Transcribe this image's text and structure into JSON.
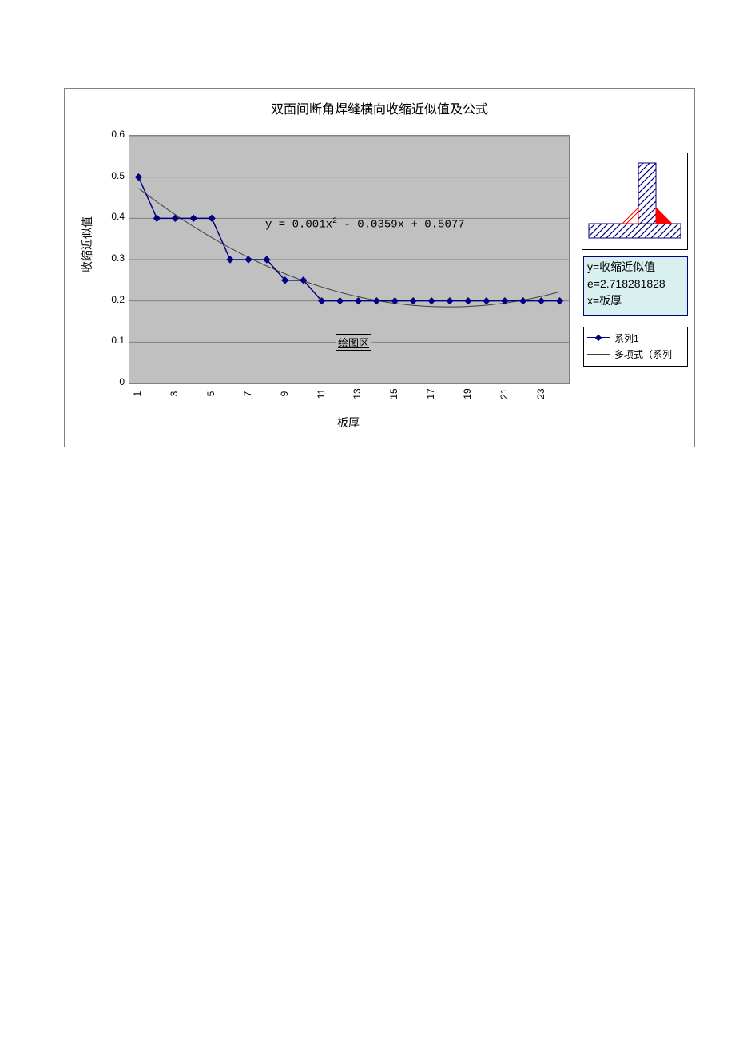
{
  "chart": {
    "type": "line",
    "title": "双面间断角焊缝横向收缩近似值及公式",
    "x_label": "板厚",
    "y_label": "收缩近似值",
    "drawing_area_label": "绘图区",
    "equation": "y = 0.001x² - 0.0359x + 0.5077",
    "title_fontsize": 16,
    "label_fontsize": 14,
    "tick_fontsize": 12,
    "plot_bg": "#c0c0c0",
    "outer_bg": "#ffffff",
    "grid_color": "#808080",
    "border_color": "#808080",
    "series1": {
      "name": "系列1",
      "color": "#000080",
      "marker": "diamond",
      "marker_size": 6,
      "line_width": 1.5,
      "x": [
        1,
        2,
        3,
        4,
        5,
        6,
        7,
        8,
        9,
        10,
        11,
        12,
        13,
        14,
        15,
        16,
        17,
        18,
        19,
        20,
        21,
        22,
        23,
        24
      ],
      "y": [
        0.5,
        0.4,
        0.4,
        0.4,
        0.4,
        0.3,
        0.3,
        0.3,
        0.25,
        0.25,
        0.2,
        0.2,
        0.2,
        0.2,
        0.2,
        0.2,
        0.2,
        0.2,
        0.2,
        0.2,
        0.2,
        0.2,
        0.2,
        0.2
      ]
    },
    "trendline": {
      "name": "多项式（系列",
      "color": "#404040",
      "line_width": 1,
      "formula_a": 0.001,
      "formula_b": -0.0359,
      "formula_c": 0.5077
    },
    "ylim": [
      0,
      0.6
    ],
    "ytick_step": 0.1,
    "yticks": [
      "0",
      "0.1",
      "0.2",
      "0.3",
      "0.4",
      "0.5",
      "0.6"
    ],
    "xlim": [
      1,
      24
    ],
    "xticks": [
      "1",
      "3",
      "5",
      "7",
      "9",
      "11",
      "13",
      "15",
      "17",
      "19",
      "21",
      "23"
    ]
  },
  "info_box": {
    "bg": "#d8f0f0",
    "border": "#000080",
    "line1": "y=收缩近似值",
    "line2": "e=2.718281828",
    "line3": "x=板厚"
  },
  "weld_diagram": {
    "hatch_color": "#000080",
    "weld_color": "#ff0000",
    "bg": "#ffffff"
  }
}
